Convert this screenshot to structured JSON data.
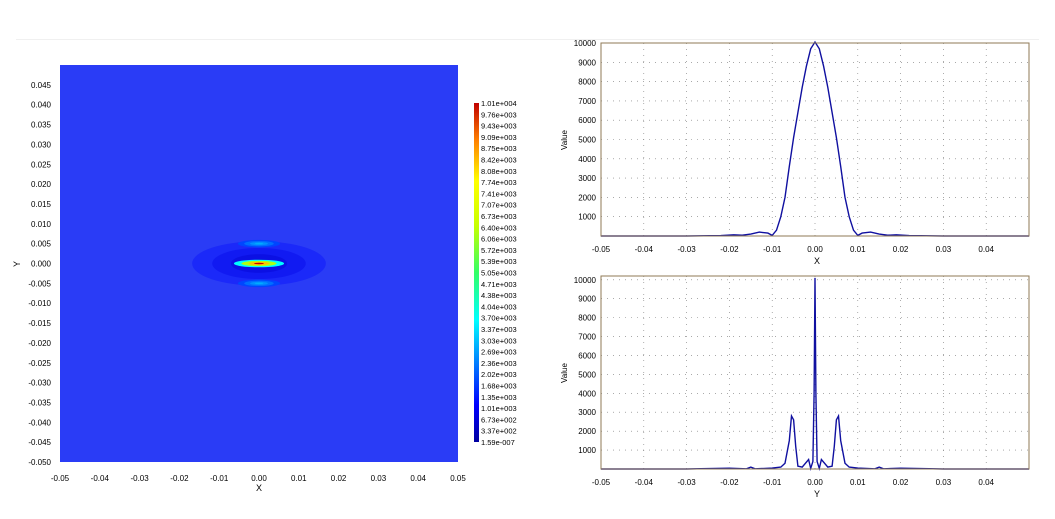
{
  "chart_data": [
    {
      "type": "heatmap",
      "xlabel": "X",
      "ylabel": "Y",
      "xlim": [
        -0.05,
        0.05
      ],
      "ylim": [
        -0.05,
        0.05
      ],
      "x_ticks": [
        "-0.05",
        "-0.04",
        "-0.03",
        "-0.02",
        "-0.01",
        "0.00",
        "0.01",
        "0.02",
        "0.03",
        "0.04",
        "0.05"
      ],
      "y_ticks": [
        "0.045",
        "0.040",
        "0.035",
        "0.030",
        "0.025",
        "0.020",
        "0.015",
        "0.010",
        "0.005",
        "0.000",
        "-0.005",
        "-0.010",
        "-0.015",
        "-0.020",
        "-0.025",
        "-0.030",
        "-0.035",
        "-0.040",
        "-0.045",
        "-0.050"
      ],
      "colorbar_labels": [
        "1.01e+004",
        "9.76e+003",
        "9.43e+003",
        "9.09e+003",
        "8.75e+003",
        "8.42e+003",
        "8.08e+003",
        "7.74e+003",
        "7.41e+003",
        "7.07e+003",
        "6.73e+003",
        "6.40e+003",
        "6.06e+003",
        "5.72e+003",
        "5.39e+003",
        "5.05e+003",
        "4.71e+003",
        "4.38e+003",
        "4.04e+003",
        "3.70e+003",
        "3.37e+003",
        "3.03e+003",
        "2.69e+003",
        "2.36e+003",
        "2.02e+003",
        "1.68e+003",
        "1.35e+003",
        "1.01e+003",
        "6.73e+002",
        "3.37e+002",
        "1.59e-007"
      ],
      "colormap": "jet",
      "value_range": [
        1.59e-07,
        10100
      ],
      "hotspots": [
        {
          "x": 0.0,
          "y": 0.0,
          "sx": 0.0045,
          "sy": 0.0006,
          "value": 10100
        },
        {
          "x": 0.0,
          "y": 0.005,
          "sx": 0.0038,
          "sy": 0.0006,
          "value": 2800
        },
        {
          "x": 0.0,
          "y": -0.005,
          "sx": 0.0038,
          "sy": 0.0006,
          "value": 2800
        },
        {
          "x": 0.0,
          "y": 0.0,
          "sx": 0.012,
          "sy": 0.0035,
          "value": 280
        }
      ]
    },
    {
      "type": "line",
      "xlabel": "X",
      "ylabel": "Value",
      "xlim": [
        -0.05,
        0.05
      ],
      "ylim": [
        0,
        10000
      ],
      "x_ticks": [
        "-0.05",
        "-0.04",
        "-0.03",
        "-0.02",
        "-0.01",
        "0.00",
        "0.01",
        "0.02",
        "0.03",
        "0.04"
      ],
      "y_ticks": [
        "1000",
        "2000",
        "3000",
        "4000",
        "5000",
        "6000",
        "7000",
        "8000",
        "9000",
        "10000"
      ],
      "grid": true,
      "series": [
        {
          "color": "#1010a0",
          "x": [
            -0.05,
            -0.03,
            -0.022,
            -0.019,
            -0.017,
            -0.015,
            -0.013,
            -0.011,
            -0.01,
            -0.009,
            -0.008,
            -0.007,
            -0.006,
            -0.005,
            -0.004,
            -0.003,
            -0.002,
            -0.001,
            0.0,
            0.001,
            0.002,
            0.003,
            0.004,
            0.005,
            0.006,
            0.007,
            0.008,
            0.009,
            0.01,
            0.011,
            0.013,
            0.015,
            0.017,
            0.019,
            0.022,
            0.03,
            0.05
          ],
          "y": [
            0,
            0,
            20,
            60,
            40,
            100,
            200,
            150,
            30,
            300,
            1000,
            2000,
            3600,
            5100,
            6400,
            7700,
            8800,
            9700,
            10050,
            9700,
            8800,
            7700,
            6400,
            5100,
            3600,
            2000,
            1000,
            300,
            30,
            150,
            200,
            100,
            40,
            60,
            20,
            0,
            0
          ]
        }
      ]
    },
    {
      "type": "line",
      "xlabel": "Y",
      "ylabel": "Value",
      "xlim": [
        -0.05,
        0.05
      ],
      "ylim": [
        0,
        10200
      ],
      "x_ticks": [
        "-0.05",
        "-0.04",
        "-0.03",
        "-0.02",
        "-0.01",
        "0.00",
        "0.01",
        "0.02",
        "0.03",
        "0.04"
      ],
      "y_ticks": [
        "1000",
        "2000",
        "3000",
        "4000",
        "5000",
        "6000",
        "7000",
        "8000",
        "9000",
        "10000"
      ],
      "grid": true,
      "series": [
        {
          "color": "#1010a0",
          "x": [
            -0.05,
            -0.03,
            -0.025,
            -0.02,
            -0.016,
            -0.015,
            -0.014,
            -0.01,
            -0.008,
            -0.007,
            -0.006,
            -0.0055,
            -0.005,
            -0.0045,
            -0.004,
            -0.003,
            -0.0015,
            -0.001,
            -0.0005,
            -0.0002,
            0.0,
            0.0002,
            0.0005,
            0.001,
            0.0015,
            0.003,
            0.004,
            0.0045,
            0.005,
            0.0055,
            0.006,
            0.007,
            0.008,
            0.01,
            0.014,
            0.015,
            0.016,
            0.02,
            0.025,
            0.03,
            0.05
          ],
          "y": [
            0,
            0,
            20,
            40,
            10,
            100,
            10,
            50,
            100,
            300,
            1500,
            2800,
            2600,
            1200,
            150,
            100,
            500,
            30,
            400,
            4000,
            10100,
            4000,
            400,
            30,
            500,
            100,
            150,
            1200,
            2600,
            2800,
            1500,
            300,
            100,
            50,
            10,
            100,
            10,
            40,
            20,
            0,
            0
          ]
        }
      ]
    }
  ]
}
